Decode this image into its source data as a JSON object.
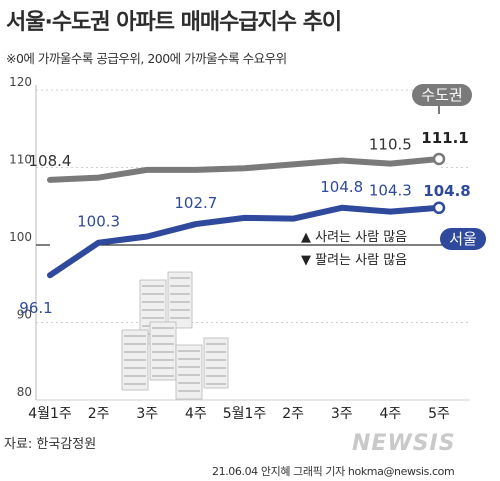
{
  "title": "서울·수도권 아파트 매매수급지수 추이",
  "subtitle": "※0에 가까울수록 공급우위, 200에 가까울수록 수요우위",
  "note_up": "▲ 사려는 사람 많음",
  "note_down": "▼ 팔려는 사람 많음",
  "source": "자료: 한국감정원",
  "watermark": "NEWSIS",
  "credit": "21.06.04 안지혜 그래픽 기자 hokma@newsis.com",
  "colors": {
    "capital": "#7a7a7a",
    "seoul": "#2f4a9c",
    "band": "#dcdcdc",
    "baseline": "#333333"
  },
  "chart_data": {
    "type": "line",
    "categories": [
      "4월1주",
      "2주",
      "3주",
      "4주",
      "5월1주",
      "2주",
      "3주",
      "4주",
      "5주"
    ],
    "ylim": [
      80,
      120
    ],
    "yticks": [
      "80",
      "90",
      "100",
      "110",
      "120"
    ],
    "reference_line": 100,
    "series": [
      {
        "name": "수도권",
        "values": [
          108.4,
          108.7,
          109.7,
          109.7,
          109.9,
          110.4,
          110.9,
          110.5,
          111.1
        ],
        "labels": {
          "0": "108.4",
          "7": "110.5",
          "8": "111.1"
        }
      },
      {
        "name": "서울",
        "values": [
          96.1,
          100.3,
          101.1,
          102.7,
          103.5,
          103.4,
          104.8,
          104.3,
          104.8
        ],
        "labels": {
          "0": "96.1",
          "1": "100.3",
          "3": "102.7",
          "6": "104.8",
          "7": "104.3",
          "8": "104.8"
        }
      }
    ]
  }
}
